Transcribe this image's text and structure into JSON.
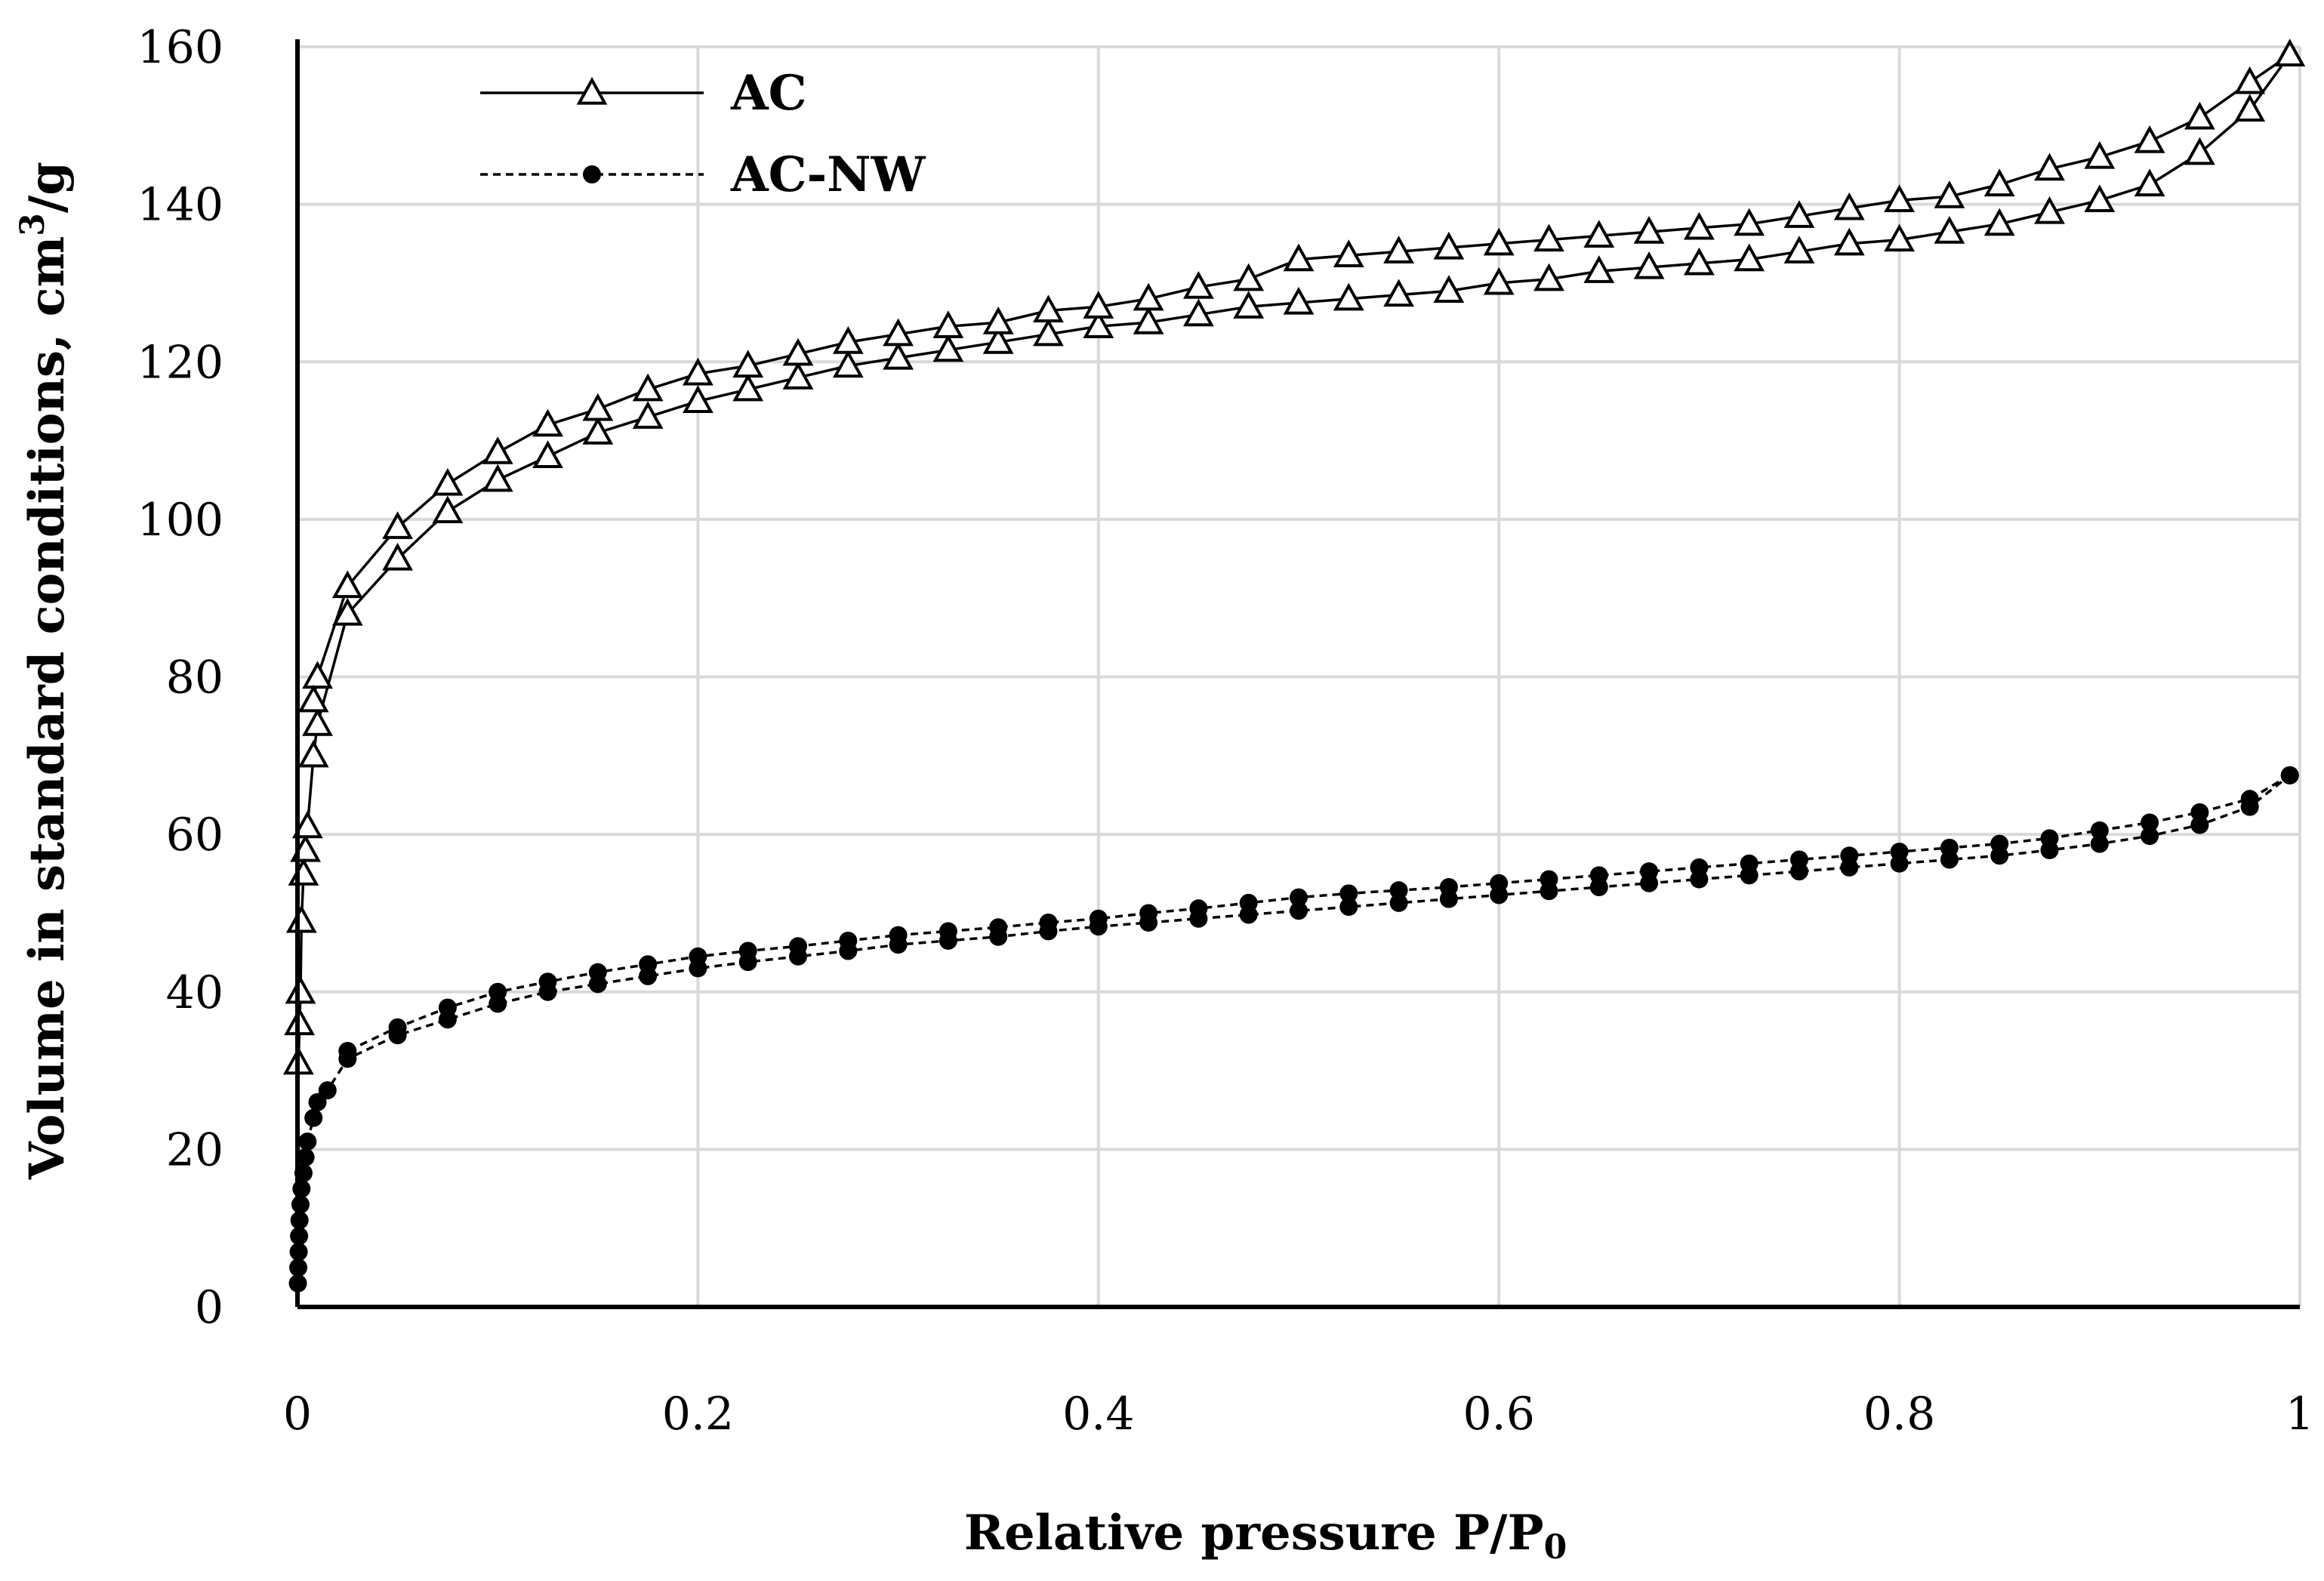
{
  "chart_data": {
    "type": "line",
    "xlabel": "Relative pressure P/P",
    "xlabel_sub": "0",
    "ylabel": "Volume in standard conditions, cm",
    "ylabel_sup": "3",
    "ylabel_end": "/g",
    "xlim": [
      0,
      1
    ],
    "ylim": [
      0,
      160
    ],
    "xticks": [
      0,
      0.2,
      0.4,
      0.6,
      0.8,
      1
    ],
    "xtick_labels": [
      "0",
      "0.2",
      "0.4",
      "0.6",
      "0.8",
      "1"
    ],
    "yticks": [
      0,
      20,
      40,
      60,
      80,
      100,
      120,
      140,
      160
    ],
    "ytick_labels": [
      "0",
      "20",
      "40",
      "60",
      "80",
      "100",
      "120",
      "140",
      "160"
    ],
    "grid": true,
    "legend_position": "top-left",
    "series": [
      {
        "name": "AC",
        "line_style": "solid",
        "marker": "open-triangle",
        "color": "#000000",
        "branches": [
          {
            "x": [
              0.0005,
              0.001,
              0.0015,
              0.002,
              0.003,
              0.004,
              0.005,
              0.008,
              0.01,
              0.025,
              0.05,
              0.075,
              0.1,
              0.125,
              0.15,
              0.175,
              0.2,
              0.225,
              0.25,
              0.275,
              0.3,
              0.325,
              0.35,
              0.375,
              0.4,
              0.425,
              0.45,
              0.475,
              0.5,
              0.525,
              0.55,
              0.575,
              0.6,
              0.625,
              0.65,
              0.675,
              0.7,
              0.725,
              0.75,
              0.775,
              0.8,
              0.825,
              0.85,
              0.875,
              0.9,
              0.925,
              0.95,
              0.975,
              0.995
            ],
            "y": [
              31,
              36,
              40,
              49,
              55,
              58,
              61,
              70,
              74,
              88,
              95,
              101,
              105,
              108,
              111,
              113,
              115,
              116.5,
              118,
              119.5,
              120.5,
              121.5,
              122.5,
              123.5,
              124.5,
              125,
              126,
              127,
              127.5,
              128,
              128.5,
              129,
              130,
              130.5,
              131.5,
              132,
              132.5,
              133,
              134,
              135,
              135.5,
              136.5,
              137.5,
              139,
              140.5,
              142.5,
              146.5,
              152,
              159
            ]
          },
          {
            "x": [
              0.995,
              0.975,
              0.95,
              0.925,
              0.9,
              0.875,
              0.85,
              0.825,
              0.8,
              0.775,
              0.75,
              0.725,
              0.7,
              0.675,
              0.65,
              0.625,
              0.6,
              0.575,
              0.55,
              0.525,
              0.5,
              0.475,
              0.45,
              0.425,
              0.4,
              0.375,
              0.35,
              0.325,
              0.3,
              0.275,
              0.25,
              0.225,
              0.2,
              0.175,
              0.15,
              0.125,
              0.1,
              0.075,
              0.05,
              0.025,
              0.01,
              0.008
            ],
            "y": [
              159,
              155.5,
              151,
              148,
              146,
              144.5,
              142.5,
              141,
              140.5,
              139.5,
              138.5,
              137.5,
              137,
              136.5,
              136,
              135.5,
              135,
              134.5,
              134,
              133.5,
              133,
              130.5,
              129.5,
              128,
              127,
              126.5,
              125,
              124.5,
              123.5,
              122.5,
              121,
              119.5,
              118.5,
              116.5,
              114,
              112,
              108.5,
              104.5,
              99,
              91.5,
              80,
              77
            ]
          }
        ]
      },
      {
        "name": "AC-NW",
        "line_style": "dashed",
        "marker": "filled-circle",
        "color": "#000000",
        "branches": [
          {
            "x": [
              0.0002,
              0.0004,
              0.0006,
              0.0008,
              0.001,
              0.0015,
              0.002,
              0.003,
              0.004,
              0.005,
              0.008,
              0.01,
              0.015,
              0.025,
              0.05,
              0.075,
              0.1,
              0.125,
              0.15,
              0.175,
              0.2,
              0.225,
              0.25,
              0.275,
              0.3,
              0.325,
              0.35,
              0.375,
              0.4,
              0.425,
              0.45,
              0.475,
              0.5,
              0.525,
              0.55,
              0.575,
              0.6,
              0.625,
              0.65,
              0.675,
              0.7,
              0.725,
              0.75,
              0.775,
              0.8,
              0.825,
              0.85,
              0.875,
              0.9,
              0.925,
              0.95,
              0.975,
              0.995
            ],
            "y": [
              3,
              5,
              7,
              9,
              11,
              13,
              15,
              17,
              19,
              21,
              24,
              26,
              27.5,
              31.5,
              34.5,
              36.5,
              38.5,
              40,
              41,
              42,
              43,
              43.8,
              44.5,
              45.2,
              46,
              46.5,
              47,
              47.7,
              48.3,
              48.8,
              49.3,
              49.8,
              50.3,
              50.8,
              51.3,
              51.8,
              52.3,
              52.8,
              53.3,
              53.8,
              54.3,
              54.8,
              55.3,
              55.8,
              56.3,
              56.8,
              57.3,
              58,
              58.8,
              59.8,
              61.2,
              63.5,
              67.5
            ]
          },
          {
            "x": [
              0.995,
              0.975,
              0.95,
              0.925,
              0.9,
              0.875,
              0.85,
              0.825,
              0.8,
              0.775,
              0.75,
              0.725,
              0.7,
              0.675,
              0.65,
              0.625,
              0.6,
              0.575,
              0.55,
              0.525,
              0.5,
              0.475,
              0.45,
              0.425,
              0.4,
              0.375,
              0.35,
              0.325,
              0.3,
              0.275,
              0.25,
              0.225,
              0.2,
              0.175,
              0.15,
              0.125,
              0.1,
              0.075,
              0.05,
              0.025
            ],
            "y": [
              67.5,
              64.5,
              62.8,
              61.5,
              60.5,
              59.5,
              58.8,
              58.3,
              57.8,
              57.3,
              56.8,
              56.3,
              55.8,
              55.3,
              54.8,
              54.3,
              53.8,
              53.3,
              52.9,
              52.5,
              52,
              51.3,
              50.6,
              50,
              49.3,
              48.8,
              48.2,
              47.7,
              47.2,
              46.5,
              45.8,
              45.2,
              44.5,
              43.5,
              42.5,
              41.3,
              40,
              38,
              35.5,
              32.5
            ]
          }
        ]
      }
    ]
  }
}
